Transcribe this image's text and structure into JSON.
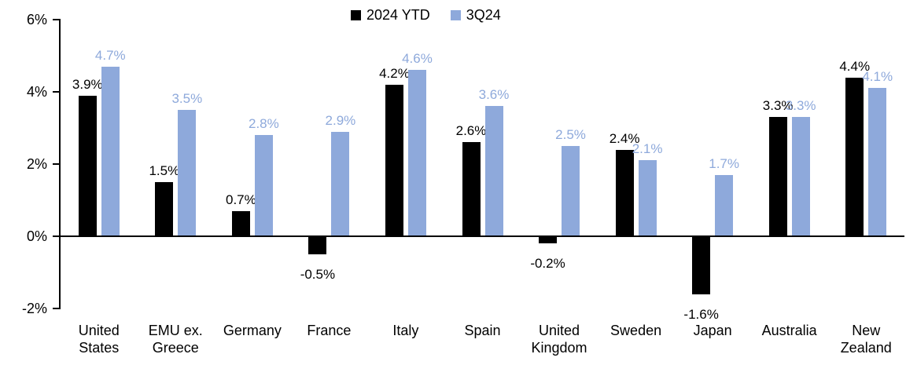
{
  "chart_data": {
    "type": "bar",
    "title": "",
    "categories": [
      "United States",
      "EMU ex. Greece",
      "Germany",
      "France",
      "Italy",
      "Spain",
      "United Kingdom",
      "Sweden",
      "Japan",
      "Australia",
      "New Zealand"
    ],
    "series": [
      {
        "name": "2024 YTD",
        "color": "#000000",
        "label_color": "#000000",
        "values": [
          3.9,
          1.5,
          0.7,
          -0.5,
          4.2,
          2.6,
          -0.2,
          2.4,
          -1.6,
          3.3,
          4.4
        ],
        "value_labels": [
          "3.9%",
          "1.5%",
          "0.7%",
          "-0.5%",
          "4.2%",
          "2.6%",
          "-0.2%",
          "2.4%",
          "-1.6%",
          "3.3%",
          "4.4%"
        ]
      },
      {
        "name": "3Q24",
        "color": "#8EA9DB",
        "label_color": "#8EA9DB",
        "values": [
          4.7,
          3.5,
          2.8,
          2.9,
          4.6,
          3.6,
          2.5,
          2.1,
          1.7,
          3.3,
          4.1
        ],
        "value_labels": [
          "4.7%",
          "3.5%",
          "2.8%",
          "2.9%",
          "4.6%",
          "3.6%",
          "2.5%",
          "2.1%",
          "1.7%",
          "3.3%",
          "4.1%"
        ]
      }
    ],
    "y_axis": {
      "min": -2,
      "max": 6,
      "ticks": [
        {
          "value": 6,
          "label": "6%"
        },
        {
          "value": 4,
          "label": "4%"
        },
        {
          "value": 2,
          "label": "2%"
        },
        {
          "value": 0,
          "label": "0%"
        },
        {
          "value": -2,
          "label": "-2%"
        }
      ]
    },
    "xlabel": "",
    "ylabel": "",
    "grid": false,
    "legend_position": "top-center",
    "axis_color": "#000000",
    "background": "#FFFFFF"
  }
}
